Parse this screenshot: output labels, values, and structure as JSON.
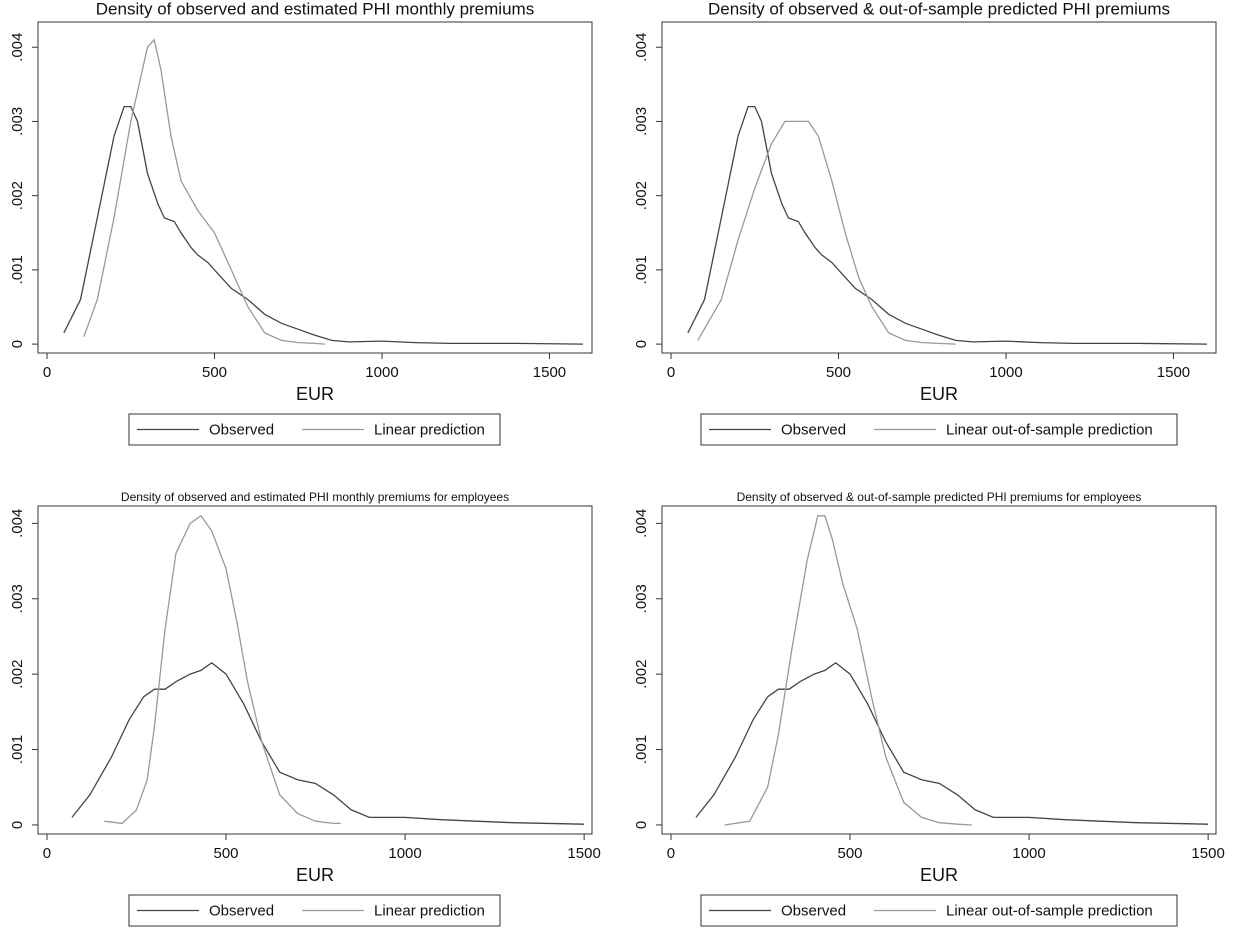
{
  "chart_data": [
    {
      "type": "line",
      "title": "Density of observed and estimated PHI monthly premiums",
      "x_label": "EUR",
      "xlim": [
        -27,
        1627
      ],
      "xticks": [
        0,
        500,
        1000,
        1500
      ],
      "ylim": [
        -0.00012,
        0.00434
      ],
      "yticks": [
        0,
        {
          "value": 0.001,
          "label": ".001"
        },
        {
          "value": 0.002,
          "label": ".002"
        },
        {
          "value": 0.003,
          "label": ".003"
        },
        {
          "value": 0.004,
          "label": ".004"
        }
      ],
      "series": [
        {
          "name": "Observed",
          "color": "#444444",
          "x": [
            50,
            100,
            150,
            200,
            230,
            250,
            270,
            300,
            330,
            350,
            380,
            400,
            430,
            450,
            480,
            500,
            550,
            600,
            650,
            700,
            750,
            800,
            850,
            900,
            1000,
            1100,
            1200,
            1400,
            1600
          ],
          "values": [
            0.00015,
            0.0006,
            0.0017,
            0.0028,
            0.0032,
            0.0032,
            0.003,
            0.0023,
            0.0019,
            0.0017,
            0.00165,
            0.0015,
            0.0013,
            0.0012,
            0.0011,
            0.001,
            0.00075,
            0.0006,
            0.0004,
            0.00028,
            0.0002,
            0.00012,
            5e-05,
            3e-05,
            4e-05,
            2e-05,
            1e-05,
            1e-05,
            0
          ]
        },
        {
          "name": "Linear prediction",
          "color": "#999999",
          "x": [
            110,
            150,
            200,
            250,
            280,
            300,
            320,
            340,
            370,
            400,
            450,
            500,
            550,
            600,
            650,
            700,
            750,
            800,
            830
          ],
          "values": [
            0.0001,
            0.0006,
            0.0017,
            0.003,
            0.0036,
            0.004,
            0.0041,
            0.0037,
            0.0028,
            0.0022,
            0.0018,
            0.0015,
            0.001,
            0.0005,
            0.00015,
            5e-05,
            2e-05,
            1e-05,
            0
          ]
        }
      ]
    },
    {
      "type": "line",
      "title": "Density of observed & out-of-sample predicted PHI premiums",
      "x_label": "EUR",
      "xlim": [
        -27,
        1627
      ],
      "xticks": [
        0,
        500,
        1000,
        1500
      ],
      "ylim": [
        -0.00012,
        0.00434
      ],
      "yticks": [
        0,
        {
          "value": 0.001,
          "label": ".001"
        },
        {
          "value": 0.002,
          "label": ".002"
        },
        {
          "value": 0.003,
          "label": ".003"
        },
        {
          "value": 0.004,
          "label": ".004"
        }
      ],
      "series": [
        {
          "name": "Observed",
          "color": "#444444",
          "x": [
            50,
            100,
            150,
            200,
            230,
            250,
            270,
            300,
            330,
            350,
            380,
            400,
            430,
            450,
            480,
            500,
            550,
            600,
            650,
            700,
            750,
            800,
            850,
            900,
            1000,
            1100,
            1200,
            1400,
            1600
          ],
          "values": [
            0.00015,
            0.0006,
            0.0017,
            0.0028,
            0.0032,
            0.0032,
            0.003,
            0.0023,
            0.0019,
            0.0017,
            0.00165,
            0.0015,
            0.0013,
            0.0012,
            0.0011,
            0.001,
            0.00075,
            0.0006,
            0.0004,
            0.00028,
            0.0002,
            0.00012,
            5e-05,
            3e-05,
            4e-05,
            2e-05,
            1e-05,
            1e-05,
            0
          ]
        },
        {
          "name": "Linear out-of-sample prediction",
          "color": "#999999",
          "x": [
            80,
            150,
            200,
            250,
            300,
            340,
            380,
            410,
            440,
            480,
            520,
            560,
            600,
            650,
            700,
            750,
            800,
            850
          ],
          "values": [
            5e-05,
            0.0006,
            0.0014,
            0.0021,
            0.0027,
            0.003,
            0.003,
            0.003,
            0.0028,
            0.0022,
            0.0015,
            0.0009,
            0.0005,
            0.00015,
            5e-05,
            2e-05,
            1e-05,
            0
          ]
        }
      ]
    },
    {
      "type": "line",
      "title": "Density of observed and estimated PHI monthly premiums for employees",
      "x_label": "EUR",
      "xlim": [
        -25,
        1522
      ],
      "xticks": [
        0,
        500,
        1000,
        1500
      ],
      "ylim": [
        -0.00012,
        0.00423
      ],
      "yticks": [
        0,
        {
          "value": 0.001,
          "label": ".001"
        },
        {
          "value": 0.002,
          "label": ".002"
        },
        {
          "value": 0.003,
          "label": ".003"
        },
        {
          "value": 0.004,
          "label": ".004"
        }
      ],
      "series": [
        {
          "name": "Observed",
          "color": "#444444",
          "x": [
            70,
            120,
            180,
            230,
            270,
            300,
            330,
            360,
            400,
            430,
            460,
            500,
            550,
            600,
            650,
            700,
            750,
            800,
            850,
            900,
            1000,
            1100,
            1200,
            1300,
            1500
          ],
          "values": [
            0.0001,
            0.0004,
            0.0009,
            0.0014,
            0.0017,
            0.0018,
            0.0018,
            0.0019,
            0.002,
            0.00205,
            0.00215,
            0.002,
            0.0016,
            0.0011,
            0.0007,
            0.0006,
            0.00055,
            0.0004,
            0.0002,
            0.0001,
            0.0001,
            7e-05,
            5e-05,
            3e-05,
            1e-05
          ]
        },
        {
          "name": "Linear prediction",
          "color": "#999999",
          "x": [
            160,
            210,
            250,
            280,
            300,
            330,
            360,
            400,
            430,
            460,
            500,
            530,
            560,
            600,
            650,
            700,
            750,
            800,
            820
          ],
          "values": [
            5e-05,
            2e-05,
            0.0002,
            0.0006,
            0.0013,
            0.0026,
            0.0036,
            0.004,
            0.0041,
            0.0039,
            0.0034,
            0.0027,
            0.0019,
            0.0011,
            0.0004,
            0.00015,
            5e-05,
            2e-05,
            2e-05
          ]
        }
      ]
    },
    {
      "type": "line",
      "title": "Density of observed & out-of-sample predicted PHI premiums for employees",
      "x_label": "EUR",
      "xlim": [
        -25,
        1522
      ],
      "xticks": [
        0,
        500,
        1000,
        1500
      ],
      "ylim": [
        -0.00012,
        0.00423
      ],
      "yticks": [
        0,
        {
          "value": 0.001,
          "label": ".001"
        },
        {
          "value": 0.002,
          "label": ".002"
        },
        {
          "value": 0.003,
          "label": ".003"
        },
        {
          "value": 0.004,
          "label": ".004"
        }
      ],
      "series": [
        {
          "name": "Observed",
          "color": "#444444",
          "x": [
            70,
            120,
            180,
            230,
            270,
            300,
            330,
            360,
            400,
            430,
            460,
            500,
            550,
            600,
            650,
            700,
            750,
            800,
            850,
            900,
            1000,
            1100,
            1200,
            1300,
            1500
          ],
          "values": [
            0.0001,
            0.0004,
            0.0009,
            0.0014,
            0.0017,
            0.0018,
            0.0018,
            0.0019,
            0.002,
            0.00205,
            0.00215,
            0.002,
            0.0016,
            0.0011,
            0.0007,
            0.0006,
            0.00055,
            0.0004,
            0.0002,
            0.0001,
            0.0001,
            7e-05,
            5e-05,
            3e-05,
            1e-05
          ]
        },
        {
          "name": "Linear out-of-sample prediction",
          "color": "#999999",
          "x": [
            150,
            220,
            270,
            300,
            340,
            380,
            410,
            430,
            450,
            480,
            520,
            560,
            600,
            650,
            700,
            750,
            800,
            840
          ],
          "values": [
            0,
            5e-05,
            0.0005,
            0.0012,
            0.0024,
            0.0035,
            0.0041,
            0.0041,
            0.0038,
            0.0032,
            0.0026,
            0.0017,
            0.0009,
            0.0003,
            0.0001,
            3e-05,
            1e-05,
            0
          ]
        }
      ]
    }
  ]
}
